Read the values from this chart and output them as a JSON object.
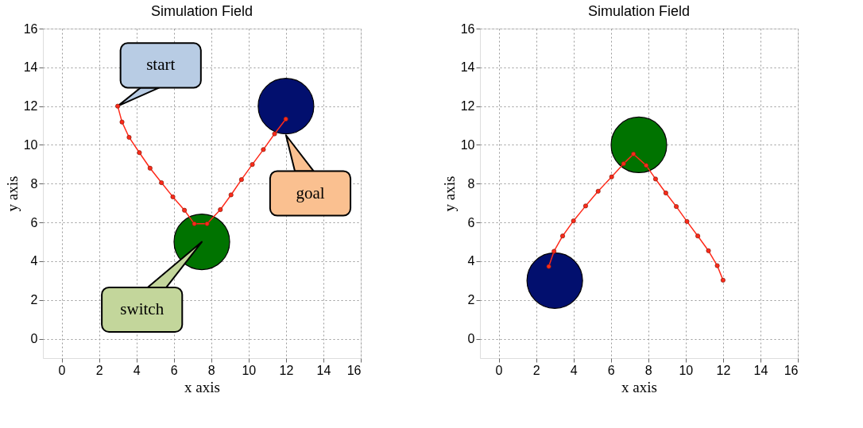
{
  "chart_data": [
    {
      "type": "line",
      "title": "Simulation Field",
      "xlabel": "x axis",
      "ylabel": "y axis",
      "xlim": [
        -1,
        16
      ],
      "ylim": [
        -1,
        16
      ],
      "xticks": [
        0,
        2,
        4,
        6,
        8,
        10,
        12,
        14,
        16
      ],
      "yticks": [
        0,
        2,
        4,
        6,
        8,
        10,
        12,
        14,
        16
      ],
      "grid": true,
      "marker": "circle",
      "line_style": "solid",
      "series": [
        {
          "color": "#ff2a1a",
          "x": [
            3.0,
            3.23,
            3.61,
            4.16,
            4.73,
            5.34,
            5.95,
            6.57,
            7.1,
            7.78,
            8.49,
            9.06,
            9.62,
            10.2,
            10.79,
            11.39,
            11.99
          ],
          "values": [
            12.0,
            11.18,
            10.39,
            9.6,
            8.8,
            8.05,
            7.32,
            6.63,
            5.93,
            5.93,
            6.66,
            7.42,
            8.21,
            8.99,
            9.76,
            10.57,
            11.33
          ]
        },
        {
          "type": "bubble",
          "color": "#020f6e",
          "x": [
            12
          ],
          "values": [
            12
          ],
          "sizes": [
            1
          ]
        },
        {
          "type": "bubble",
          "color": "#007300",
          "x": [
            7.5
          ],
          "values": [
            5
          ],
          "sizes": [
            1
          ]
        }
      ],
      "annotations": [
        {
          "text": "start",
          "x": 3,
          "y": 12
        },
        {
          "text": "goal",
          "x": 12,
          "y": 10.5
        },
        "switch"
      ]
    },
    {
      "type": "line",
      "title": "Simulation Field",
      "xlabel": "x axis",
      "ylabel": "y axis",
      "xlim": [
        -1,
        16
      ],
      "ylim": [
        -1,
        16
      ],
      "xticks": [
        0,
        2,
        4,
        6,
        8,
        10,
        12,
        14,
        16
      ],
      "yticks": [
        0,
        2,
        4,
        6,
        8,
        10,
        12,
        14,
        16
      ],
      "grid": true,
      "marker": "circle",
      "line_style": "solid",
      "series": [
        {
          "color": "#ff2a1a",
          "x": [
            2.68,
            2.96,
            3.42,
            4.0,
            4.65,
            5.32,
            6.04,
            6.68,
            7.21,
            7.89,
            8.39,
            8.94,
            9.5,
            10.07,
            10.65,
            11.22,
            11.69,
            12.0
          ],
          "values": [
            3.73,
            4.51,
            5.3,
            6.08,
            6.85,
            7.61,
            8.35,
            9.03,
            9.53,
            8.94,
            8.24,
            7.52,
            6.82,
            6.05,
            5.3,
            4.54,
            3.77,
            3.02
          ]
        },
        {
          "type": "bubble",
          "color": "#020f6e",
          "x": [
            3
          ],
          "values": [
            3
          ],
          "sizes": [
            1
          ]
        },
        {
          "type": "bubble",
          "color": "#007300",
          "x": [
            7.5
          ],
          "values": [
            10
          ],
          "sizes": [
            1
          ]
        }
      ]
    }
  ]
}
